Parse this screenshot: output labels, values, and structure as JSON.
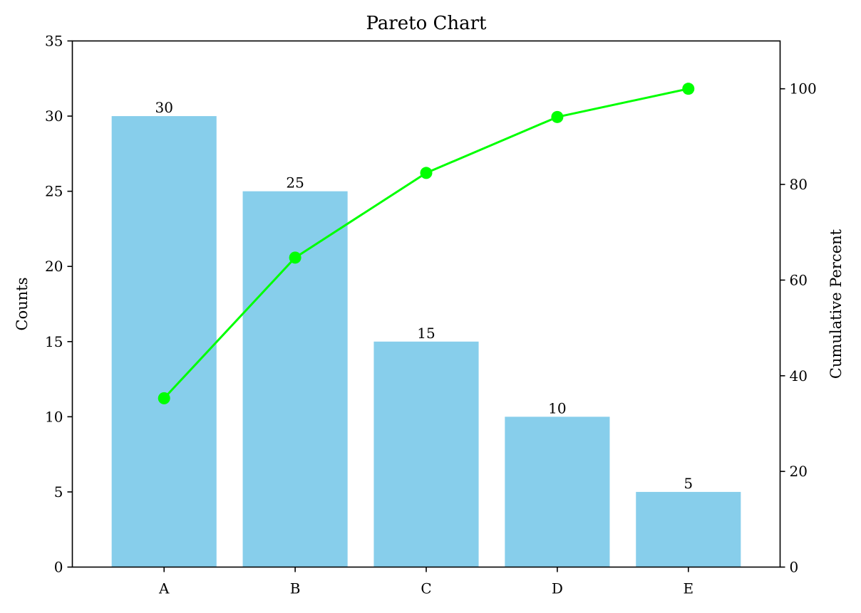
{
  "chart_data": {
    "type": "bar",
    "title": "Pareto Chart",
    "categories": [
      "A",
      "B",
      "C",
      "D",
      "E"
    ],
    "series": [
      {
        "type": "bar",
        "values": [
          30,
          25,
          15,
          10,
          5
        ],
        "axis": "left"
      },
      {
        "type": "line",
        "values": [
          35.3,
          64.7,
          82.4,
          94.1,
          100.0
        ],
        "axis": "right",
        "marker": "circle"
      }
    ],
    "data_labels": [
      "30",
      "25",
      "15",
      "10",
      "5"
    ],
    "ylabel": "Counts",
    "ylabel_right": "Cumulative Percent",
    "ylim": [
      0,
      35
    ],
    "ylim_right": [
      0,
      110
    ],
    "yticks": [
      0,
      5,
      10,
      15,
      20,
      25,
      30,
      35
    ],
    "yticks_right": [
      0,
      20,
      40,
      60,
      80,
      100
    ],
    "grid": false,
    "colors": {
      "bar": "#87CEEB",
      "line": "#00FF00",
      "axes": "#000000"
    }
  }
}
